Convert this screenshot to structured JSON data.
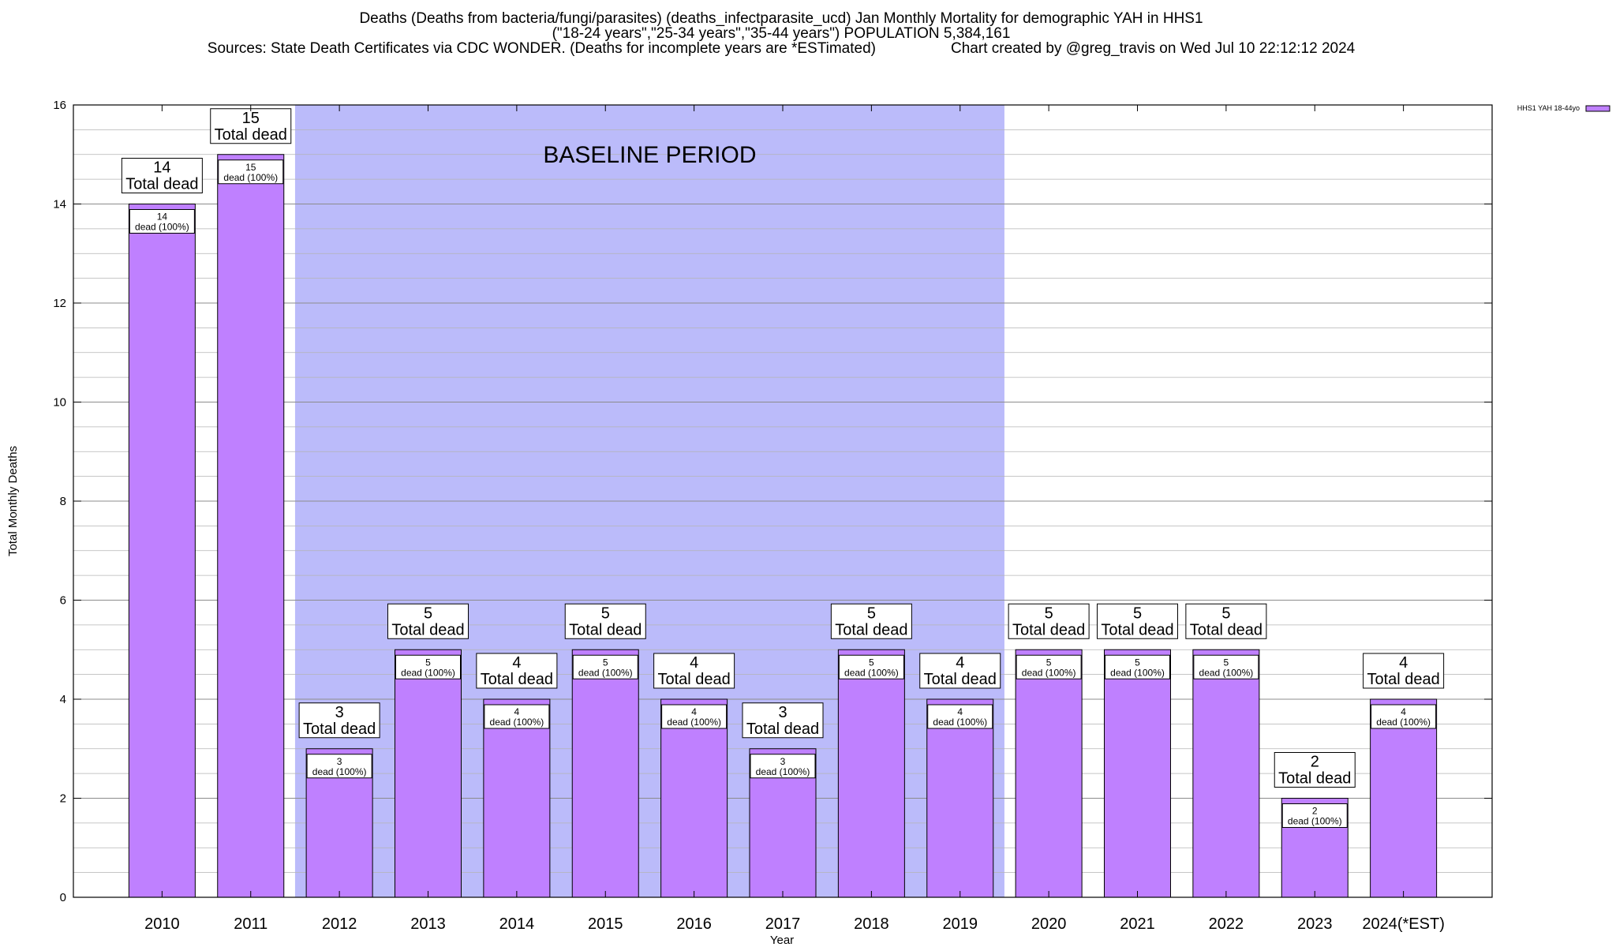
{
  "chart_data": {
    "type": "bar",
    "title": "Deaths (Deaths from bacteria/fungi/parasites) (deaths_infectparasite_ucd) Jan Monthly Mortality for demographic YAH in HHS1",
    "subtitle": "(\"18-24 years\",\"25-34 years\",\"35-44 years\") POPULATION 5,384,161",
    "source": "Sources: State Death Certificates via CDC WONDER. (Deaths for incomplete years are *ESTimated)",
    "credit": "Chart created by @greg_travis on Wed Jul 10 22:12:12 2024",
    "xlabel": "Year",
    "ylabel": "Total Monthly Deaths",
    "ylim": [
      0,
      16
    ],
    "yticks": [
      0,
      2,
      4,
      6,
      8,
      10,
      12,
      14,
      16
    ],
    "grid": true,
    "legend": {
      "position": "top-right",
      "label": "HHS1 YAH 18-44yo"
    },
    "categories": [
      "2010",
      "2011",
      "2012",
      "2013",
      "2014",
      "2015",
      "2016",
      "2017",
      "2018",
      "2019",
      "2020",
      "2021",
      "2022",
      "2023",
      "2024(*EST)"
    ],
    "values": [
      14,
      15,
      3,
      5,
      4,
      5,
      4,
      3,
      5,
      4,
      5,
      5,
      5,
      2,
      4
    ],
    "total_label_suffix": "Total dead",
    "bar_label_suffix": "dead (100%)",
    "baseline": {
      "label": "BASELINE PERIOD",
      "from": "2012",
      "to": "2019"
    },
    "colors": {
      "bar": "#bf80ff",
      "baseline_shade": "#bbbbfa"
    }
  }
}
